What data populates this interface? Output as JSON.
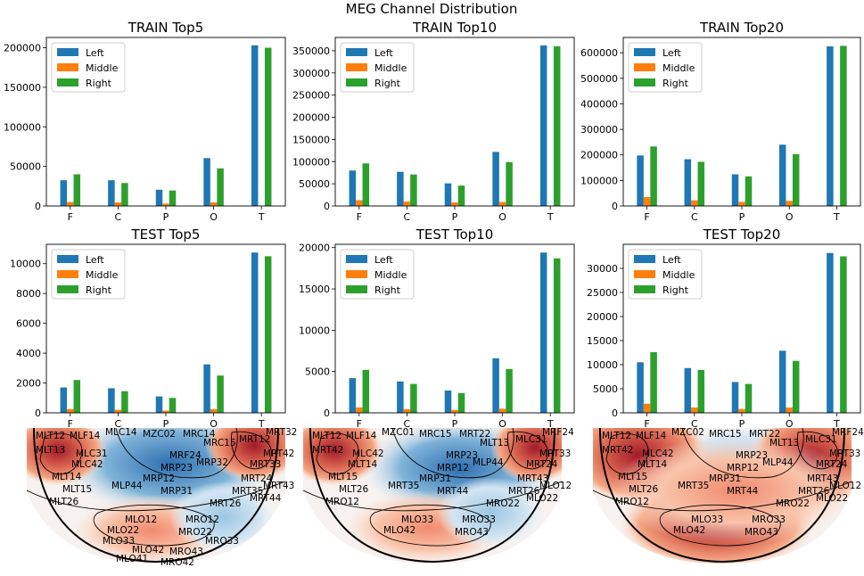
{
  "suptitle": "MEG Channel Distribution",
  "colors": {
    "Left": "#1f77b4",
    "Middle": "#ff7f0e",
    "Right": "#2ca02c"
  },
  "chart_data": [
    {
      "type": "bar",
      "title": "TRAIN Top5",
      "categories": [
        "F",
        "C",
        "P",
        "O",
        "T"
      ],
      "ylim": [
        0,
        213000
      ],
      "yticks": [
        0,
        50000,
        100000,
        150000,
        200000
      ],
      "ytick_labels": [
        "0",
        "50000",
        "100000",
        "150000",
        "200000"
      ],
      "series": [
        {
          "name": "Left",
          "values": [
            32500,
            32500,
            20500,
            60500,
            203000
          ]
        },
        {
          "name": "Middle",
          "values": [
            5000,
            4500,
            3000,
            4500,
            0
          ]
        },
        {
          "name": "Right",
          "values": [
            40000,
            29000,
            19500,
            47500,
            200000
          ]
        }
      ],
      "legend": "upper-left"
    },
    {
      "type": "bar",
      "title": "TRAIN Top10",
      "categories": [
        "F",
        "C",
        "P",
        "O",
        "T"
      ],
      "ylim": [
        0,
        380000
      ],
      "yticks": [
        0,
        50000,
        100000,
        150000,
        200000,
        250000,
        300000,
        350000
      ],
      "ytick_labels": [
        "0",
        "50000",
        "100000",
        "150000",
        "200000",
        "250000",
        "300000",
        "350000"
      ],
      "series": [
        {
          "name": "Left",
          "values": [
            80000,
            77000,
            51000,
            122000,
            362000
          ]
        },
        {
          "name": "Middle",
          "values": [
            13000,
            10000,
            8000,
            9000,
            0
          ]
        },
        {
          "name": "Right",
          "values": [
            96000,
            71000,
            46000,
            99000,
            360000
          ]
        }
      ],
      "legend": "upper-left"
    },
    {
      "type": "bar",
      "title": "TRAIN Top20",
      "categories": [
        "F",
        "C",
        "P",
        "O",
        "T"
      ],
      "ylim": [
        0,
        660000
      ],
      "yticks": [
        0,
        100000,
        200000,
        300000,
        400000,
        500000,
        600000
      ],
      "ytick_labels": [
        "0",
        "100000",
        "200000",
        "300000",
        "400000",
        "500000",
        "600000"
      ],
      "series": [
        {
          "name": "Left",
          "values": [
            198000,
            183000,
            124000,
            240000,
            625000
          ]
        },
        {
          "name": "Middle",
          "values": [
            35000,
            22000,
            16000,
            20000,
            0
          ]
        },
        {
          "name": "Right",
          "values": [
            233000,
            173000,
            116000,
            203000,
            627000
          ]
        }
      ],
      "legend": "upper-left"
    },
    {
      "type": "bar",
      "title": "TEST Top5",
      "categories": [
        "F",
        "C",
        "P",
        "O",
        "T"
      ],
      "ylim": [
        0,
        11300
      ],
      "yticks": [
        0,
        2000,
        4000,
        6000,
        8000,
        10000
      ],
      "ytick_labels": [
        "0",
        "2000",
        "4000",
        "6000",
        "8000",
        "10000"
      ],
      "series": [
        {
          "name": "Left",
          "values": [
            1700,
            1650,
            1100,
            3250,
            10750
          ]
        },
        {
          "name": "Middle",
          "values": [
            250,
            200,
            150,
            250,
            0
          ]
        },
        {
          "name": "Right",
          "values": [
            2200,
            1450,
            1000,
            2500,
            10500
          ]
        }
      ],
      "legend": "upper-left"
    },
    {
      "type": "bar",
      "title": "TEST Top10",
      "categories": [
        "F",
        "C",
        "P",
        "O",
        "T"
      ],
      "ylim": [
        0,
        20400
      ],
      "yticks": [
        0,
        5000,
        10000,
        15000,
        20000
      ],
      "ytick_labels": [
        "0",
        "5000",
        "10000",
        "15000",
        "20000"
      ],
      "series": [
        {
          "name": "Left",
          "values": [
            4200,
            3800,
            2700,
            6600,
            19400
          ]
        },
        {
          "name": "Middle",
          "values": [
            650,
            450,
            350,
            500,
            0
          ]
        },
        {
          "name": "Right",
          "values": [
            5200,
            3500,
            2400,
            5300,
            18700
          ]
        }
      ],
      "legend": "upper-left"
    },
    {
      "type": "bar",
      "title": "TEST Top20",
      "categories": [
        "F",
        "C",
        "P",
        "O",
        "T"
      ],
      "ylim": [
        0,
        35000
      ],
      "yticks": [
        0,
        5000,
        10000,
        15000,
        20000,
        25000,
        30000
      ],
      "ytick_labels": [
        "0",
        "5000",
        "10000",
        "15000",
        "20000",
        "25000",
        "30000"
      ],
      "series": [
        {
          "name": "Left",
          "values": [
            10500,
            9300,
            6400,
            12900,
            33200
          ]
        },
        {
          "name": "Middle",
          "values": [
            1900,
            1100,
            800,
            1100,
            0
          ]
        },
        {
          "name": "Right",
          "values": [
            12600,
            8900,
            6000,
            10800,
            32500
          ]
        }
      ],
      "legend": "upper-left"
    }
  ],
  "topomaps": [
    {
      "name": "topomap-top5",
      "labels": [
        "MLT12",
        "MLF14",
        "MLC14",
        "MZC02",
        "MRC14",
        "MRC15",
        "MRT12",
        "MRT32",
        "MLT13",
        "MLC31",
        "MRF24",
        "MRT42",
        "MLC42",
        "MRP23",
        "MRP32",
        "MRT33",
        "MLT14",
        "MRP12",
        "MLP44",
        "MRT24",
        "MLT15",
        "MRP31",
        "MRT35",
        "MRT43",
        "MLT26",
        "MRT44",
        "MRT26",
        "MLO12",
        "MRO12",
        "MLO22",
        "MRO22",
        "MLO33",
        "MRO33",
        "MLO42",
        "MRO43",
        "MLO41",
        "MRO42"
      ]
    },
    {
      "name": "topomap-top10",
      "labels": [
        "MLT12",
        "MLF14",
        "MZC01",
        "MRC15",
        "MRT22",
        "MLT13",
        "MLC31",
        "MRF24",
        "MRT42",
        "MLC42",
        "MRP23",
        "MRT33",
        "MLT14",
        "MRP12",
        "MLP44",
        "MRT24",
        "MLT15",
        "MRP31",
        "MRT35",
        "MRT43",
        "MLT26",
        "MRT44",
        "MRT26",
        "MLO12",
        "MRO12",
        "MLO22",
        "MRO22",
        "MLO33",
        "MRO33",
        "MLO42",
        "MRO43"
      ]
    },
    {
      "name": "topomap-top20",
      "labels": [
        "MLT12",
        "MLF14",
        "MZC02",
        "MRC15",
        "MRT22",
        "MLT13",
        "MLC31",
        "MRF24",
        "MRT42",
        "MLC42",
        "MRP23",
        "MRT33",
        "MLT14",
        "MRP12",
        "MLP44",
        "MRT24",
        "MLT15",
        "MRP31",
        "MRT35",
        "MRT43",
        "MLT26",
        "MRT44",
        "MRT26",
        "MLO12",
        "MRO12",
        "MLO22",
        "MRO22",
        "MLO33",
        "MRO33",
        "MLO42",
        "MRO43"
      ]
    }
  ]
}
